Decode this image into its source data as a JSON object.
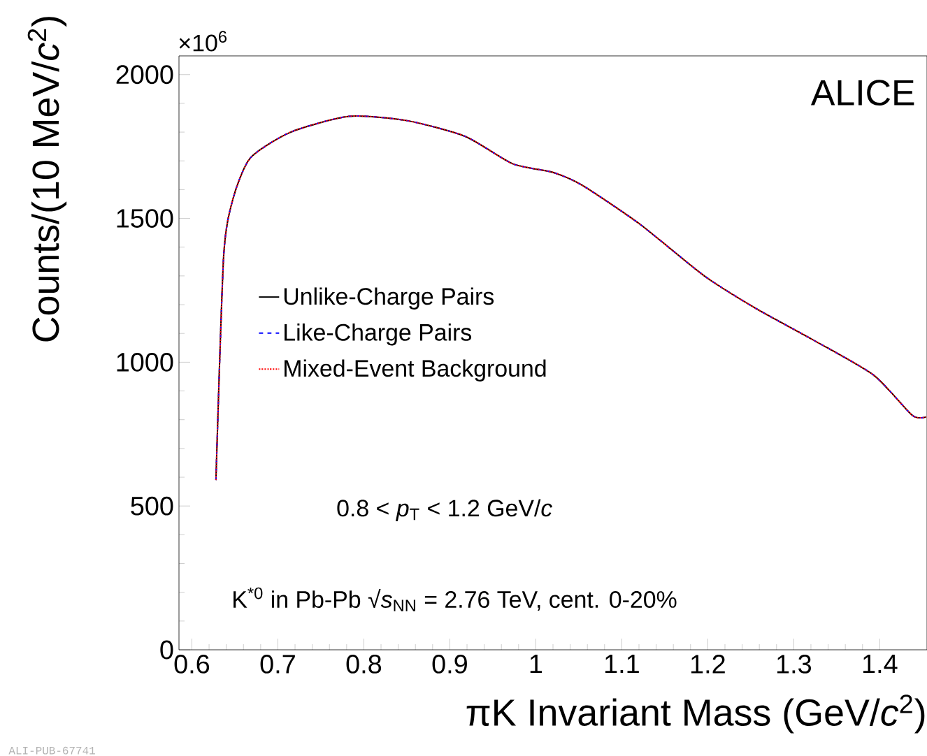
{
  "chart_data": {
    "type": "line",
    "xlabel": "πK Invariant Mass (GeV/*c*$^{2}$)",
    "ylabel": "Counts/(10 MeV/*c*$^{2}$)",
    "x": [
      0.628,
      0.637,
      0.648,
      0.668,
      0.715,
      0.783,
      0.85,
      0.918,
      0.973,
      1.02,
      1.054,
      1.121,
      1.196,
      1.257,
      1.324,
      1.393,
      1.438,
      1.454
    ],
    "series": [
      {
        "name": "Unlike-Charge Pairs",
        "color": "#000000",
        "line_style": "solid",
        "values": [
          590,
          1370,
          1570,
          1710,
          1800,
          1855,
          1840,
          1785,
          1690,
          1660,
          1615,
          1480,
          1300,
          1185,
          1075,
          955,
          815,
          810
        ]
      },
      {
        "name": "Like-Charge Pairs",
        "color": "#0000ff",
        "line_style": "dashed",
        "values": [
          590,
          1370,
          1570,
          1710,
          1800,
          1855,
          1840,
          1785,
          1690,
          1660,
          1615,
          1480,
          1300,
          1185,
          1075,
          955,
          815,
          810
        ]
      },
      {
        "name": "Mixed-Event Background",
        "color": "#ff0000",
        "line_style": "dotted",
        "values": [
          590,
          1370,
          1570,
          1710,
          1800,
          1855,
          1840,
          1785,
          1690,
          1660,
          1615,
          1480,
          1300,
          1185,
          1075,
          955,
          815,
          810
        ]
      }
    ],
    "xlim": [
      0.585,
      1.455
    ],
    "ylim": [
      0,
      2065
    ],
    "xticks": [
      0.6,
      0.7,
      0.8,
      0.9,
      {
        "value": 1.0,
        "label": "1"
      },
      1.1,
      1.2,
      1.3,
      1.4
    ],
    "yticks": [
      0,
      500,
      1000,
      1500,
      2000
    ],
    "legend": "left",
    "grid": false,
    "marker": "none",
    "annotations": [
      "ALICE",
      "0.8 < *p*$_{T}$ < 1.2 GeV/*c*",
      "K$^{*0}$ in Pb-Pb √*s*$_{NN}$ = 2.76 TeV, cent. 0-20%",
      "×10$^{6}$",
      "ALI-PUB-67741"
    ]
  }
}
